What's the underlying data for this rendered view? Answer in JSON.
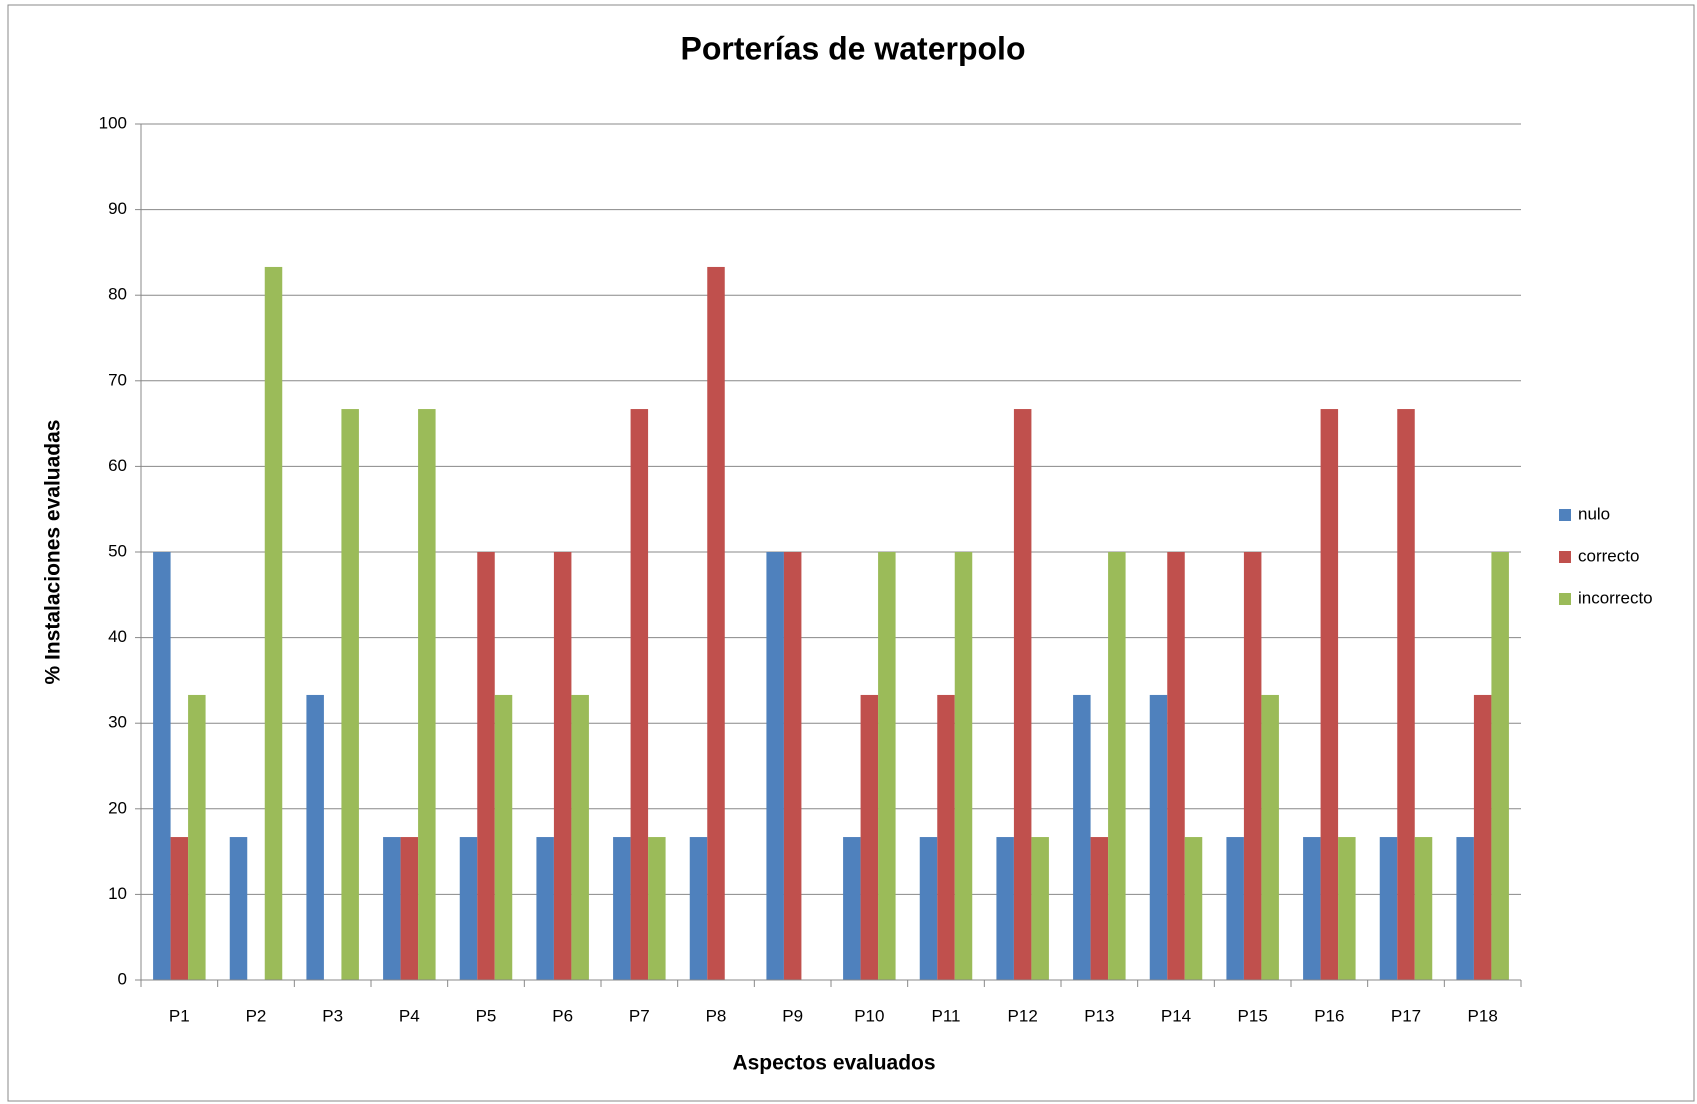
{
  "chart_data": {
    "type": "bar",
    "title": "Porterías de waterpolo",
    "x_label": "Aspectos evaluados",
    "y_label": "% Instalaciones evaluadas",
    "categories": [
      "P1",
      "P2",
      "P3",
      "P4",
      "P5",
      "P6",
      "P7",
      "P8",
      "P9",
      "P10",
      "P11",
      "P12",
      "P13",
      "P14",
      "P15",
      "P16",
      "P17",
      "P18"
    ],
    "series": [
      {
        "name": "nulo",
        "color": "#4f81bd",
        "values": [
          50,
          16.7,
          33.3,
          16.7,
          16.7,
          16.7,
          16.7,
          16.7,
          50,
          16.7,
          16.7,
          16.7,
          33.3,
          33.3,
          16.7,
          16.7,
          16.7,
          16.7
        ]
      },
      {
        "name": "correcto",
        "color": "#c0504d",
        "values": [
          16.7,
          0,
          0,
          16.7,
          50,
          50,
          66.7,
          83.3,
          50,
          33.3,
          33.3,
          66.7,
          16.7,
          50,
          50,
          66.7,
          66.7,
          33.3
        ]
      },
      {
        "name": "incorrecto",
        "color": "#9bbb59",
        "values": [
          33.3,
          83.3,
          66.7,
          66.7,
          33.3,
          33.3,
          16.7,
          0,
          0,
          50,
          50,
          16.7,
          50,
          16.7,
          33.3,
          16.7,
          16.7,
          50
        ]
      }
    ],
    "ylim": [
      0,
      100
    ],
    "yticks": [
      0,
      10,
      20,
      30,
      40,
      50,
      60,
      70,
      80,
      90,
      100
    ],
    "grid": true,
    "legend": "right"
  }
}
